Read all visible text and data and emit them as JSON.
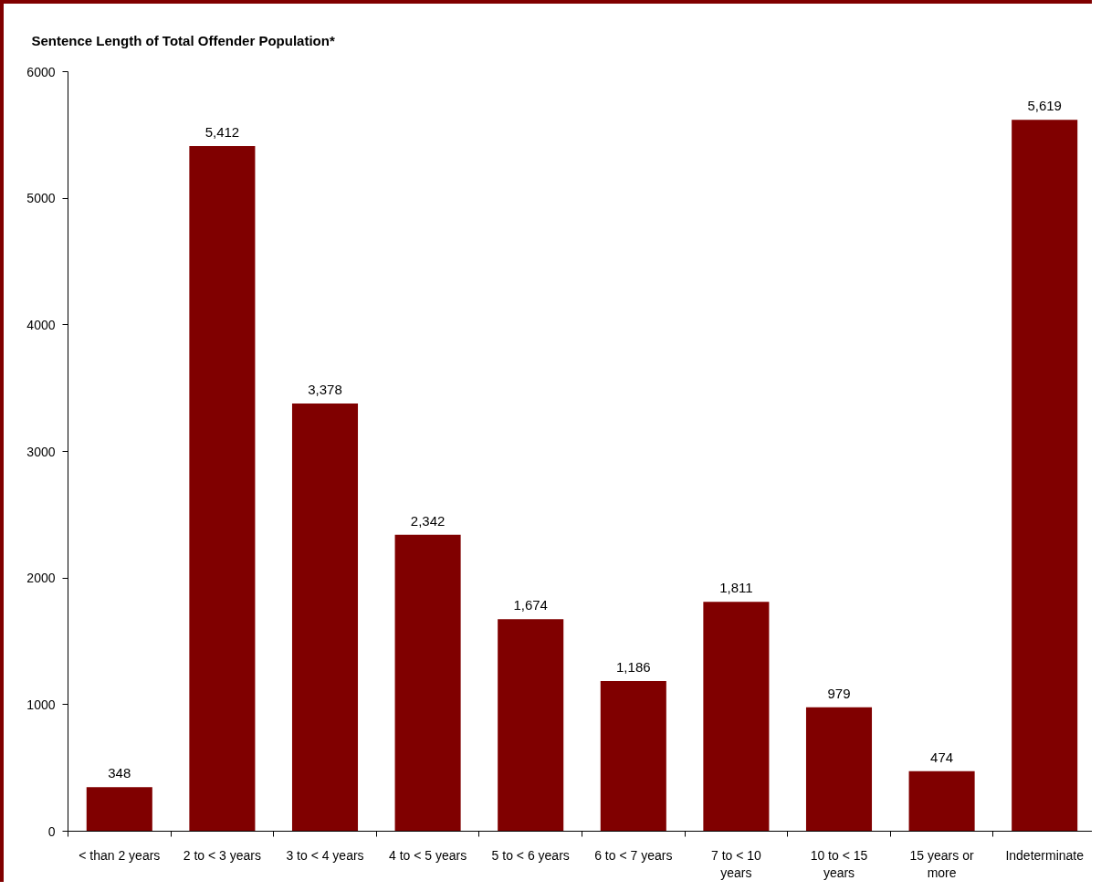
{
  "chart_data": {
    "type": "bar",
    "title": "Sentence Length of Total Offender Population*",
    "categories": [
      "< than 2 years",
      "2 to < 3 years",
      "3 to < 4 years",
      "4 to < 5 years",
      "5 to < 6 years",
      "6 to < 7 years",
      "7 to < 10 years",
      "10 to < 15 years",
      "15 years or more",
      "Indeterminate"
    ],
    "values": [
      348,
      5412,
      3378,
      2342,
      1674,
      1186,
      1811,
      979,
      474,
      5619
    ],
    "value_labels": [
      "348",
      "5,412",
      "3,378",
      "2,342",
      "1,674",
      "1,186",
      "1,811",
      "979",
      "474",
      "5,619"
    ],
    "color": "#800000",
    "ylim": [
      0,
      6000
    ],
    "yticks": [
      0,
      1000,
      2000,
      3000,
      4000,
      5000,
      6000
    ],
    "grid": false
  }
}
